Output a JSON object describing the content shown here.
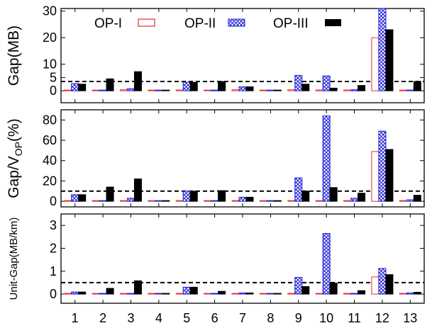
{
  "chart_data": [
    {
      "type": "bar",
      "ylabel": "Gap(MB)",
      "yticks": [
        0,
        5,
        10,
        20,
        30
      ],
      "ylim": [
        -4.5,
        31
      ],
      "reference_line": 3.5,
      "categories": [
        "1",
        "2",
        "3",
        "4",
        "5",
        "6",
        "7",
        "8",
        "9",
        "10",
        "11",
        "12",
        "13"
      ],
      "legend": {
        "placement": "top-left",
        "entries": [
          "OP-I",
          "OP-II",
          "OP-III"
        ]
      },
      "series": [
        {
          "name": "OP-I",
          "values": [
            0.2,
            0.2,
            0.4,
            0.2,
            0.3,
            0.2,
            0.4,
            0.2,
            0.4,
            0.3,
            0.3,
            20.0,
            0.2
          ]
        },
        {
          "name": "OP-II",
          "values": [
            2.7,
            0.2,
            0.8,
            0.2,
            3.2,
            0.2,
            1.5,
            0.2,
            5.8,
            5.6,
            0.4,
            31.0,
            0.3
          ]
        },
        {
          "name": "OP-III",
          "values": [
            2.5,
            4.5,
            7.2,
            0.2,
            3.2,
            3.5,
            1.5,
            0.2,
            2.5,
            1.0,
            2.0,
            23.0,
            3.5
          ]
        }
      ]
    },
    {
      "type": "bar",
      "ylabel": "Gap/V",
      "ylabel_sub": "OP",
      "ylabel_suffix": "(%)",
      "yticks": [
        0,
        20,
        40,
        60,
        80
      ],
      "ylim": [
        -5.5,
        90
      ],
      "reference_line": 10,
      "categories": [
        "1",
        "2",
        "3",
        "4",
        "5",
        "6",
        "7",
        "8",
        "9",
        "10",
        "11",
        "12",
        "13"
      ],
      "series": [
        {
          "name": "OP-I",
          "values": [
            0.4,
            0.4,
            0.6,
            0.4,
            0.4,
            0.4,
            0.6,
            0.4,
            0.6,
            0.5,
            0.5,
            49.0,
            0.4
          ]
        },
        {
          "name": "OP-II",
          "values": [
            6.5,
            0.4,
            3.0,
            0.4,
            10.0,
            0.4,
            4.0,
            0.4,
            23.0,
            84.0,
            3.0,
            69.0,
            1.5
          ]
        },
        {
          "name": "OP-III",
          "values": [
            6.5,
            14.0,
            22.0,
            0.4,
            10.0,
            10.5,
            4.0,
            0.4,
            10.0,
            13.5,
            8.0,
            51.0,
            6.0
          ]
        }
      ]
    },
    {
      "type": "bar",
      "ylabel": "Unit-Gap(MB/km)",
      "yticks": [
        0,
        1,
        2,
        3
      ],
      "ylim": [
        -0.4,
        3.5
      ],
      "reference_line": 0.5,
      "categories": [
        "1",
        "2",
        "3",
        "4",
        "5",
        "6",
        "7",
        "8",
        "9",
        "10",
        "11",
        "12",
        "13"
      ],
      "series": [
        {
          "name": "OP-I",
          "values": [
            0.0,
            0.0,
            0.0,
            0.0,
            0.0,
            0.0,
            0.0,
            0.0,
            0.0,
            0.0,
            0.0,
            0.75,
            0.0
          ]
        },
        {
          "name": "OP-II",
          "values": [
            0.09,
            0.0,
            0.03,
            0.0,
            0.3,
            0.0,
            0.05,
            0.0,
            0.73,
            2.65,
            0.03,
            1.12,
            0.05
          ]
        },
        {
          "name": "OP-III",
          "values": [
            0.09,
            0.25,
            0.58,
            0.0,
            0.3,
            0.12,
            0.05,
            0.0,
            0.33,
            0.48,
            0.15,
            0.85,
            0.08
          ]
        }
      ]
    }
  ],
  "colors": {
    "op1_stroke": "#e03030",
    "op2_pattern": "#1f1fd6",
    "op3_fill": "#000000"
  }
}
